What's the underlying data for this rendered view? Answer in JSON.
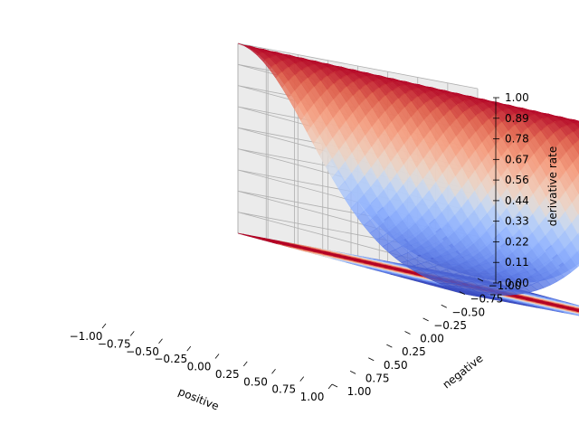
{
  "chart_data": {
    "type": "surface3d",
    "title": "",
    "xlabel": "positive",
    "ylabel": "negative",
    "zlabel": "derivative rate",
    "x_ticks": [
      "−1.00",
      "−0.75",
      "−0.50",
      "−0.25",
      "0.00",
      "0.25",
      "0.50",
      "0.75",
      "1.00"
    ],
    "y_ticks": [
      "−1.00",
      "−0.75",
      "−0.50",
      "−0.25",
      "0.00",
      "0.25",
      "0.50",
      "0.75",
      "1.00"
    ],
    "z_ticks": [
      "0.00",
      "0.11",
      "0.22",
      "0.33",
      "0.44",
      "0.56",
      "0.67",
      "0.78",
      "0.89",
      "1.00"
    ],
    "xlim": [
      -1,
      1
    ],
    "ylim": [
      -1,
      1
    ],
    "zlim": [
      0,
      1
    ],
    "grid": true,
    "colormap": "coolwarm",
    "surface": "z = exp(-((x - y) / 0.9)^2), peak 1.0 along x = y",
    "contour_bands": 9,
    "colors": {
      "cool": "#3b4cc0",
      "neutral": "#dddddd",
      "warm": "#b40426"
    }
  }
}
